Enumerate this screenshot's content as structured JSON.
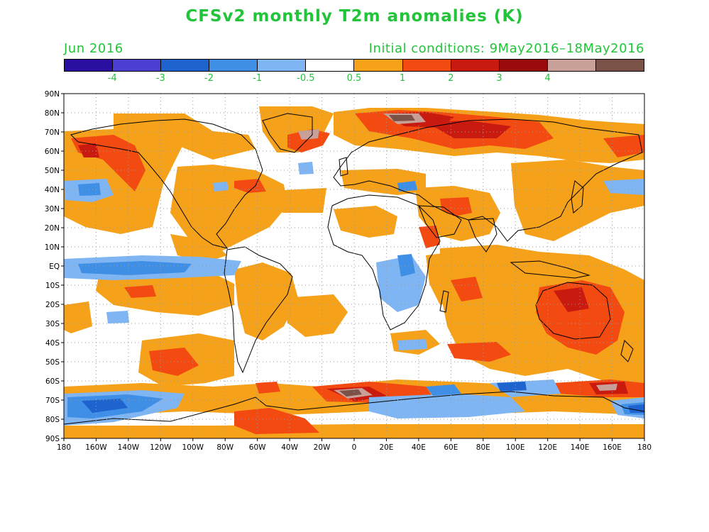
{
  "title": "CFSv2 monthly T2m anomalies (K)",
  "month_label": "Jun 2016",
  "initial_conditions": "Initial conditions: 9May2016–18May2016",
  "colorbar": {
    "colors": [
      "#2b0fa0",
      "#4a3fd0",
      "#1f63cf",
      "#3f8fe6",
      "#7fb5f2",
      "#ffffff",
      "#f5a11a",
      "#f24a10",
      "#c91a10",
      "#9a0b0b",
      "#c8a097",
      "#7a5248"
    ],
    "labels": [
      "-4",
      "-3",
      "-2",
      "-1",
      "-0.5",
      "0.5",
      "1",
      "2",
      "3",
      "4"
    ]
  },
  "lat_labels": [
    "90N",
    "80N",
    "70N",
    "60N",
    "50N",
    "40N",
    "30N",
    "20N",
    "10N",
    "EQ",
    "10S",
    "20S",
    "30S",
    "40S",
    "50S",
    "60S",
    "70S",
    "80S",
    "90S"
  ],
  "lon_labels": [
    "180",
    "160W",
    "140W",
    "120W",
    "100W",
    "80W",
    "60W",
    "40W",
    "20W",
    "0",
    "20E",
    "40E",
    "60E",
    "80E",
    "100E",
    "120E",
    "140E",
    "160E",
    "180"
  ]
}
